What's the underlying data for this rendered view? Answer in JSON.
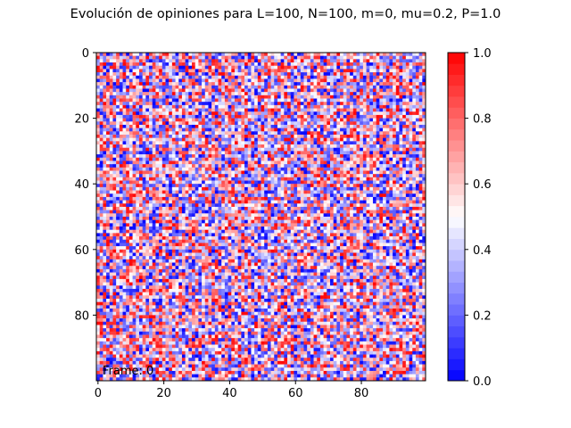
{
  "chart_data": {
    "type": "heatmap",
    "title": "Evolución de opiniones para L=100, N=100, m=0, mu=0.2, P=1.0",
    "xlabel": "",
    "ylabel": "",
    "grid_size": [
      100,
      100
    ],
    "x_ticks": [
      "0",
      "20",
      "40",
      "60",
      "80"
    ],
    "y_ticks": [
      "0",
      "20",
      "40",
      "60",
      "80"
    ],
    "colorbar": {
      "ticks": [
        "0.0",
        "0.2",
        "0.4",
        "0.6",
        "0.8",
        "1.0"
      ],
      "range": [
        0.0,
        1.0
      ],
      "levels": 30,
      "colormap": "bwr",
      "low_color": "#0000ff",
      "mid_color": "#ffffff",
      "high_color": "#ff0000"
    },
    "values_description_random_uniform_seed": 0,
    "annotation": "Frame: 0",
    "grid": false
  }
}
